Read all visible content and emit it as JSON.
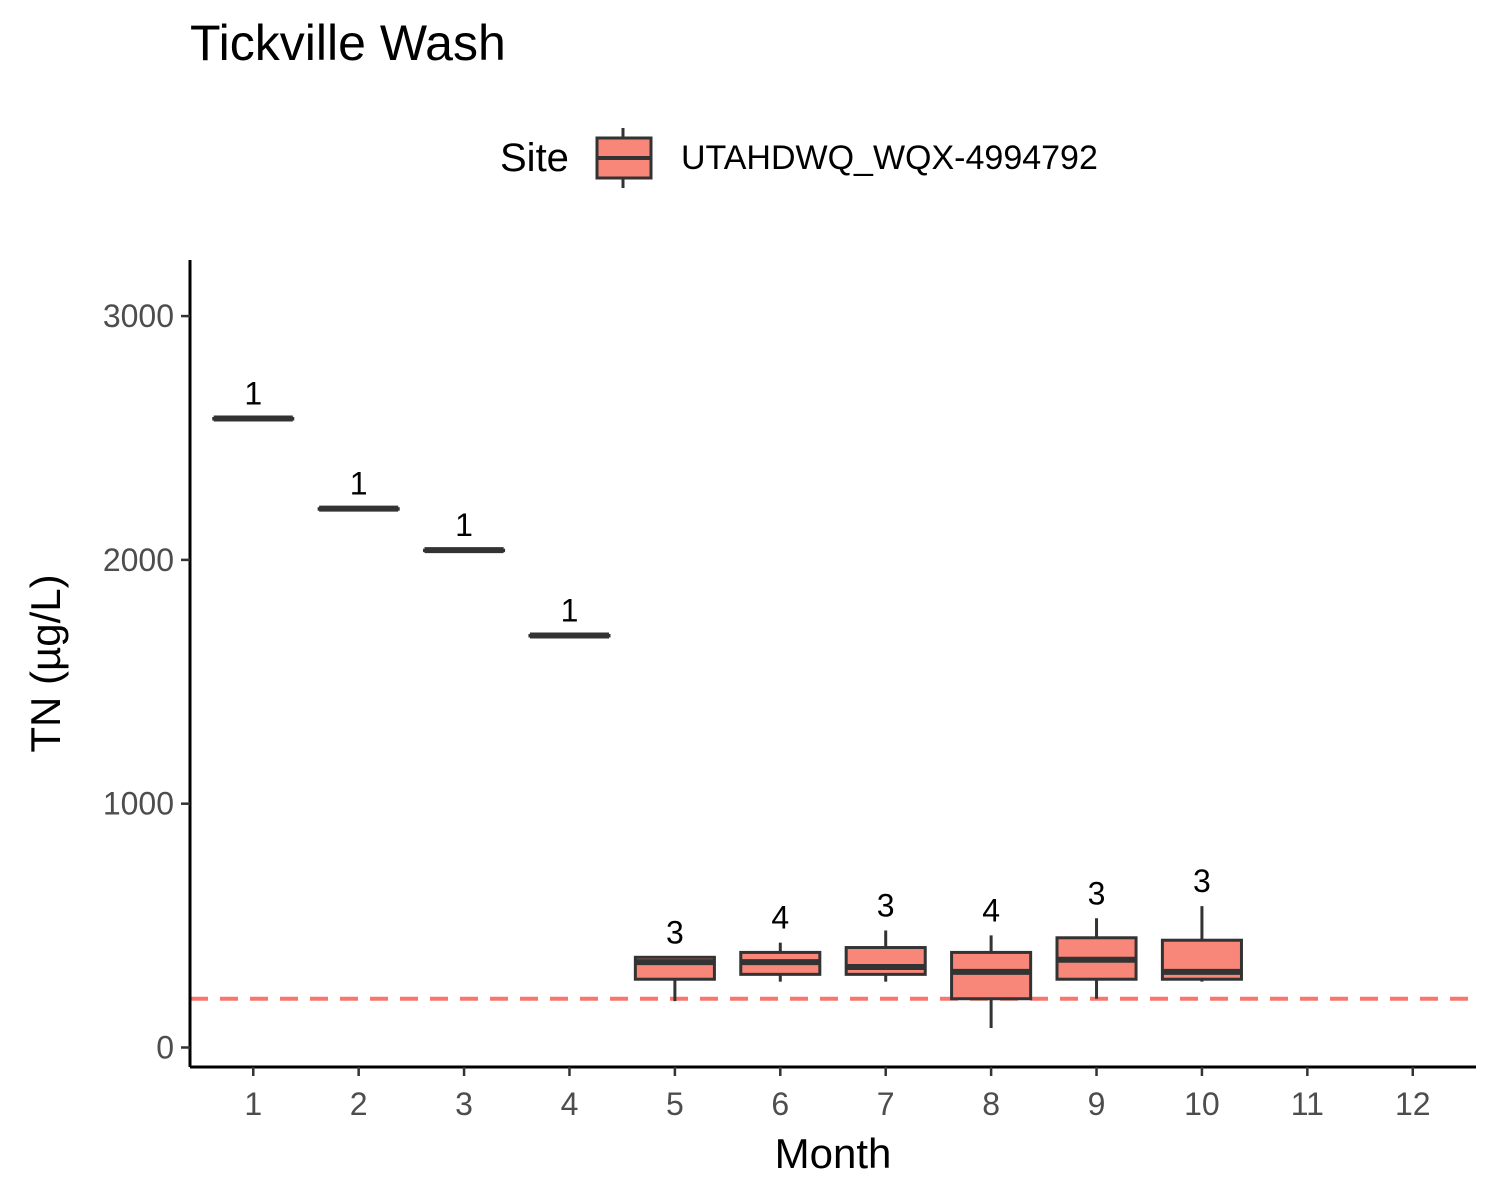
{
  "chart_data": {
    "type": "box",
    "title": "Tickville Wash",
    "xlabel": "Month",
    "ylabel": "TN (µg/L)",
    "legend": {
      "title": "Site",
      "position": "top",
      "entries": [
        {
          "label": "UTAHDWQ_WQX-4994792",
          "color": "#F8877A"
        }
      ]
    },
    "categories": [
      "1",
      "2",
      "3",
      "4",
      "5",
      "6",
      "7",
      "8",
      "9",
      "10",
      "11",
      "12"
    ],
    "y_ticks": [
      0,
      1000,
      2000,
      3000
    ],
    "ylim": [
      -80,
      3230
    ],
    "xlim": [
      0.4,
      12.6
    ],
    "reference_line": {
      "y": 200,
      "color": "#F8766D",
      "style": "dashed"
    },
    "series": [
      {
        "name": "UTAHDWQ_WQX-4994792",
        "color": "#F8877A",
        "boxes": [
          {
            "month": 1,
            "min": 2580,
            "q1": 2580,
            "median": 2580,
            "q3": 2580,
            "max": 2580,
            "n": 1
          },
          {
            "month": 2,
            "min": 2210,
            "q1": 2210,
            "median": 2210,
            "q3": 2210,
            "max": 2210,
            "n": 1
          },
          {
            "month": 3,
            "min": 2040,
            "q1": 2040,
            "median": 2040,
            "q3": 2040,
            "max": 2040,
            "n": 1
          },
          {
            "month": 4,
            "min": 1690,
            "q1": 1690,
            "median": 1690,
            "q3": 1690,
            "max": 1690,
            "n": 1
          },
          {
            "month": 5,
            "min": 190,
            "q1": 280,
            "median": 350,
            "q3": 370,
            "max": 370,
            "n": 3
          },
          {
            "month": 6,
            "min": 270,
            "q1": 300,
            "median": 350,
            "q3": 390,
            "max": 430,
            "n": 4
          },
          {
            "month": 7,
            "min": 270,
            "q1": 300,
            "median": 330,
            "q3": 410,
            "max": 480,
            "n": 3
          },
          {
            "month": 8,
            "min": 80,
            "q1": 200,
            "median": 310,
            "q3": 390,
            "max": 460,
            "n": 4
          },
          {
            "month": 9,
            "min": 200,
            "q1": 280,
            "median": 360,
            "q3": 450,
            "max": 530,
            "n": 3
          },
          {
            "month": 10,
            "min": 270,
            "q1": 280,
            "median": 310,
            "q3": 440,
            "max": 580,
            "n": 3
          }
        ]
      }
    ]
  }
}
